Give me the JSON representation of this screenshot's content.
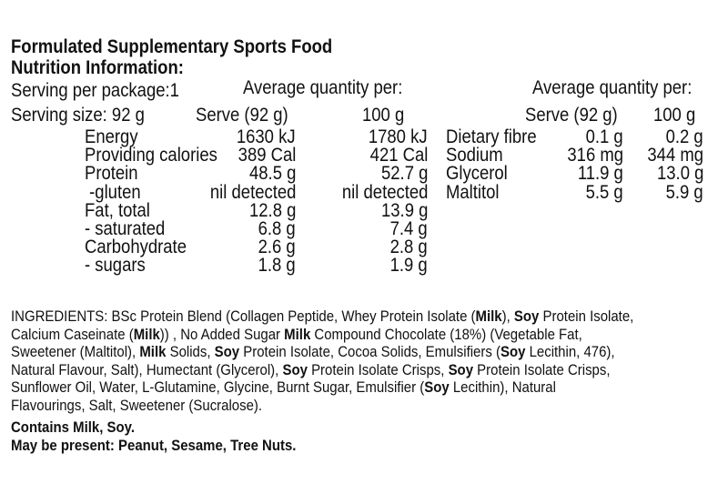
{
  "header": {
    "title": "Formulated Supplementary Sports Food",
    "subtitle": "Nutrition Information:"
  },
  "serving": {
    "per_package": "Serving per package:1",
    "size": "Serving size: 92 g"
  },
  "left_table": {
    "heading": "Average quantity per:",
    "columns": [
      "Serve (92 g)",
      "100 g"
    ],
    "rows": [
      [
        "Energy",
        "1630 kJ",
        "1780 kJ"
      ],
      [
        "Providing calories",
        "389 Cal",
        "421 Cal"
      ],
      [
        "Protein",
        "48.5 g",
        "52.7 g"
      ],
      [
        " -gluten",
        "nil detected",
        "nil detected"
      ],
      [
        "Fat, total",
        "12.8 g",
        "13.9 g"
      ],
      [
        "- saturated",
        "6.8 g",
        "7.4 g"
      ],
      [
        "Carbohydrate",
        "2.6 g",
        "2.8 g"
      ],
      [
        "- sugars",
        "1.8 g",
        "1.9 g"
      ]
    ]
  },
  "right_table": {
    "heading": "Average quantity per:",
    "columns": [
      "Serve (92 g)",
      "100 g"
    ],
    "rows": [
      [
        "Dietary fibre",
        "0.1 g",
        "0.2 g"
      ],
      [
        "Sodium",
        "316 mg",
        "344 mg"
      ],
      [
        "Glycerol",
        "11.9 g",
        "13.0 g"
      ],
      [
        "Maltitol",
        "5.5 g",
        "5.9 g"
      ]
    ]
  },
  "ingredients": {
    "lines": [
      [
        {
          "text": "INGREDIENTS: BSc Protein Blend (Collagen Peptide, Whey Protein Isolate (",
          "bold": false
        },
        {
          "text": "Milk",
          "bold": true
        },
        {
          "text": "), ",
          "bold": false
        },
        {
          "text": "Soy",
          "bold": true
        },
        {
          "text": " Protein Isolate,",
          "bold": false
        }
      ],
      [
        {
          "text": "Calcium Caseinate (",
          "bold": false
        },
        {
          "text": "Milk",
          "bold": true
        },
        {
          "text": ")) , No Added Sugar ",
          "bold": false
        },
        {
          "text": "Milk",
          "bold": true
        },
        {
          "text": " Compound Chocolate (18%) (Vegetable Fat,",
          "bold": false
        }
      ],
      [
        {
          "text": "Sweetener (Maltitol), ",
          "bold": false
        },
        {
          "text": "Milk",
          "bold": true
        },
        {
          "text": " Solids, ",
          "bold": false
        },
        {
          "text": "Soy",
          "bold": true
        },
        {
          "text": " Protein Isolate, Cocoa Solids, Emulsifiers (",
          "bold": false
        },
        {
          "text": "Soy",
          "bold": true
        },
        {
          "text": " Lecithin, 476),",
          "bold": false
        }
      ],
      [
        {
          "text": "Natural Flavour, Salt), Humectant (Glycerol), ",
          "bold": false
        },
        {
          "text": "Soy",
          "bold": true
        },
        {
          "text": " Protein Isolate Crisps, ",
          "bold": false
        },
        {
          "text": "Soy",
          "bold": true
        },
        {
          "text": " Protein Isolate Crisps,",
          "bold": false
        }
      ],
      [
        {
          "text": "Sunflower Oil, Water, L-Glutamine, Glycine, Burnt Sugar, Emulsifier (",
          "bold": false
        },
        {
          "text": "Soy",
          "bold": true
        },
        {
          "text": " Lecithin), Natural",
          "bold": false
        }
      ],
      [
        {
          "text": "Flavourings, Salt, Sweetener (Sucralose).",
          "bold": false
        }
      ]
    ]
  },
  "allergens": [
    "Contains Milk, Soy.",
    "May be present: Peanut, Sesame, Tree Nuts."
  ]
}
